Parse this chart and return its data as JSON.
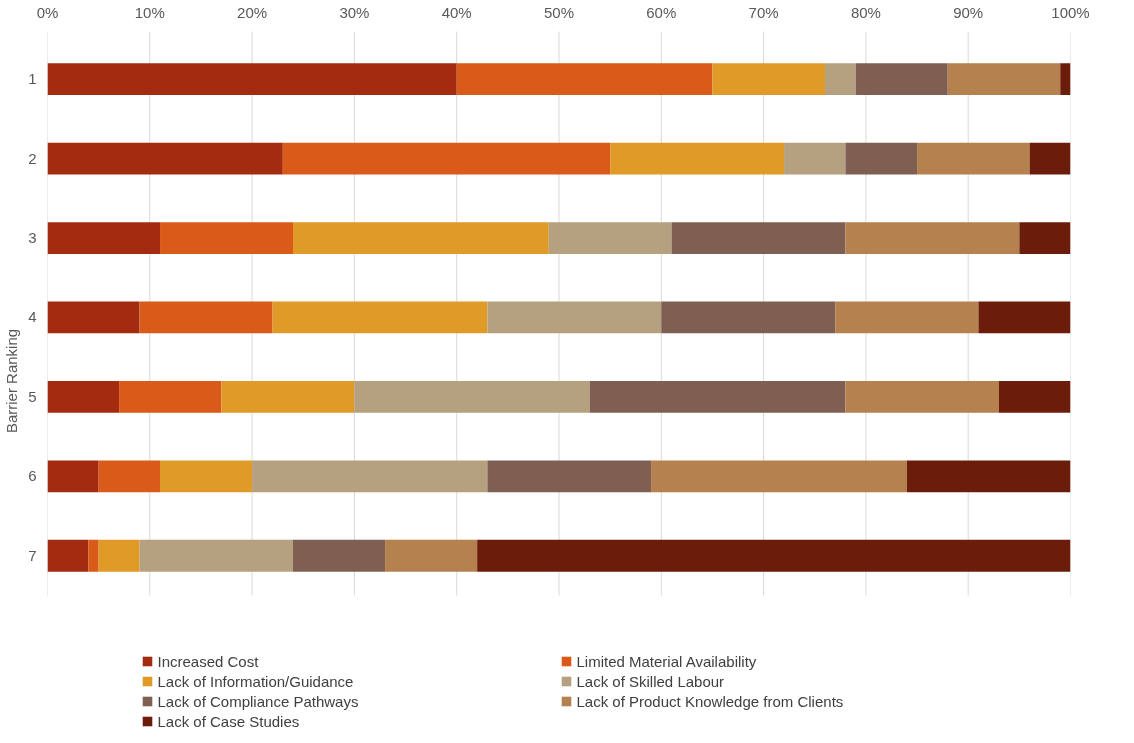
{
  "chart_data": {
    "type": "bar",
    "orientation": "horizontal",
    "stacked": true,
    "ylabel": "Barrier Ranking",
    "categories": [
      "1",
      "2",
      "3",
      "4",
      "5",
      "6",
      "7"
    ],
    "series": [
      {
        "name": "Increased Cost",
        "color": "#a32b10",
        "values": [
          40,
          23,
          11,
          9,
          7,
          5,
          4
        ]
      },
      {
        "name": "Limited Material Availability",
        "color": "#d95a19",
        "values": [
          25,
          32,
          13,
          13,
          10,
          6,
          1
        ]
      },
      {
        "name": "Lack of Information/Guidance",
        "color": "#e09a28",
        "values": [
          11,
          17,
          25,
          21,
          13,
          9,
          4
        ]
      },
      {
        "name": "Lack of Skilled Labour",
        "color": "#b5a080",
        "values": [
          3,
          6,
          12,
          17,
          23,
          23,
          15
        ]
      },
      {
        "name": "Lack of Compliance Pathways",
        "color": "#7e5f52",
        "values": [
          9,
          7,
          17,
          17,
          25,
          16,
          9
        ]
      },
      {
        "name": "Lack of Product Knowledge from Clients",
        "color": "#b5814e",
        "values": [
          11,
          11,
          17,
          14,
          15,
          25,
          9
        ]
      },
      {
        "name": "Lack of Case Studies",
        "color": "#6b1c0a",
        "values": [
          1,
          4,
          5,
          9,
          7,
          16,
          58
        ]
      }
    ],
    "xlim": [
      0,
      100
    ],
    "xticks": [
      {
        "value": 0,
        "label": "0%"
      },
      {
        "value": 10,
        "label": "10%"
      },
      {
        "value": 20,
        "label": "20%"
      },
      {
        "value": 30,
        "label": "30%"
      },
      {
        "value": 40,
        "label": "40%"
      },
      {
        "value": 50,
        "label": "50%"
      },
      {
        "value": 60,
        "label": "60%"
      },
      {
        "value": 70,
        "label": "70%"
      },
      {
        "value": 80,
        "label": "80%"
      },
      {
        "value": 90,
        "label": "90%"
      },
      {
        "value": 100,
        "label": "100%"
      }
    ],
    "grid": "x",
    "legend": "bottom"
  }
}
